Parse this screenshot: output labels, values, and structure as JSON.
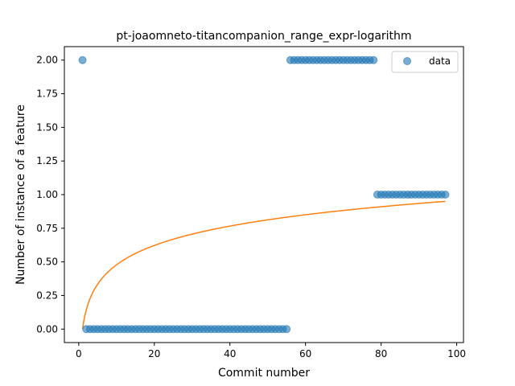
{
  "chart_data": {
    "type": "scatter",
    "title": "pt-joaomneto-titancompanion_range_expr-logarithm",
    "xlabel": "Commit number",
    "ylabel": "Number of instance of a feature",
    "xlim": [
      -3.8,
      101.8
    ],
    "ylim": [
      -0.1,
      2.1
    ],
    "xticks": [
      0,
      20,
      40,
      60,
      80,
      100
    ],
    "yticks": [
      0.0,
      0.25,
      0.5,
      0.75,
      1.0,
      1.25,
      1.5,
      1.75,
      2.0
    ],
    "ytick_labels": [
      "0.00",
      "0.25",
      "0.50",
      "0.75",
      "1.00",
      "1.25",
      "1.50",
      "1.75",
      "2.00"
    ],
    "grid": false,
    "legend": {
      "position": "top-right",
      "entries": [
        "data"
      ]
    },
    "colors": {
      "data": "#1f77b4",
      "fit": "#ff7f0e"
    },
    "series": [
      {
        "name": "data",
        "kind": "scatter",
        "segments": [
          {
            "x_start": 1,
            "x_end": 1,
            "y": 2
          },
          {
            "x_start": 2,
            "x_end": 55,
            "y": 0
          },
          {
            "x_start": 56,
            "x_end": 78,
            "y": 2
          },
          {
            "x_start": 79,
            "x_end": 97,
            "y": 1
          }
        ]
      },
      {
        "kind": "line",
        "curve": "logarithmic",
        "x_start": 1,
        "x_end": 97,
        "y_at_x_start": 0.0,
        "y_at_x_end": 0.95
      }
    ]
  }
}
